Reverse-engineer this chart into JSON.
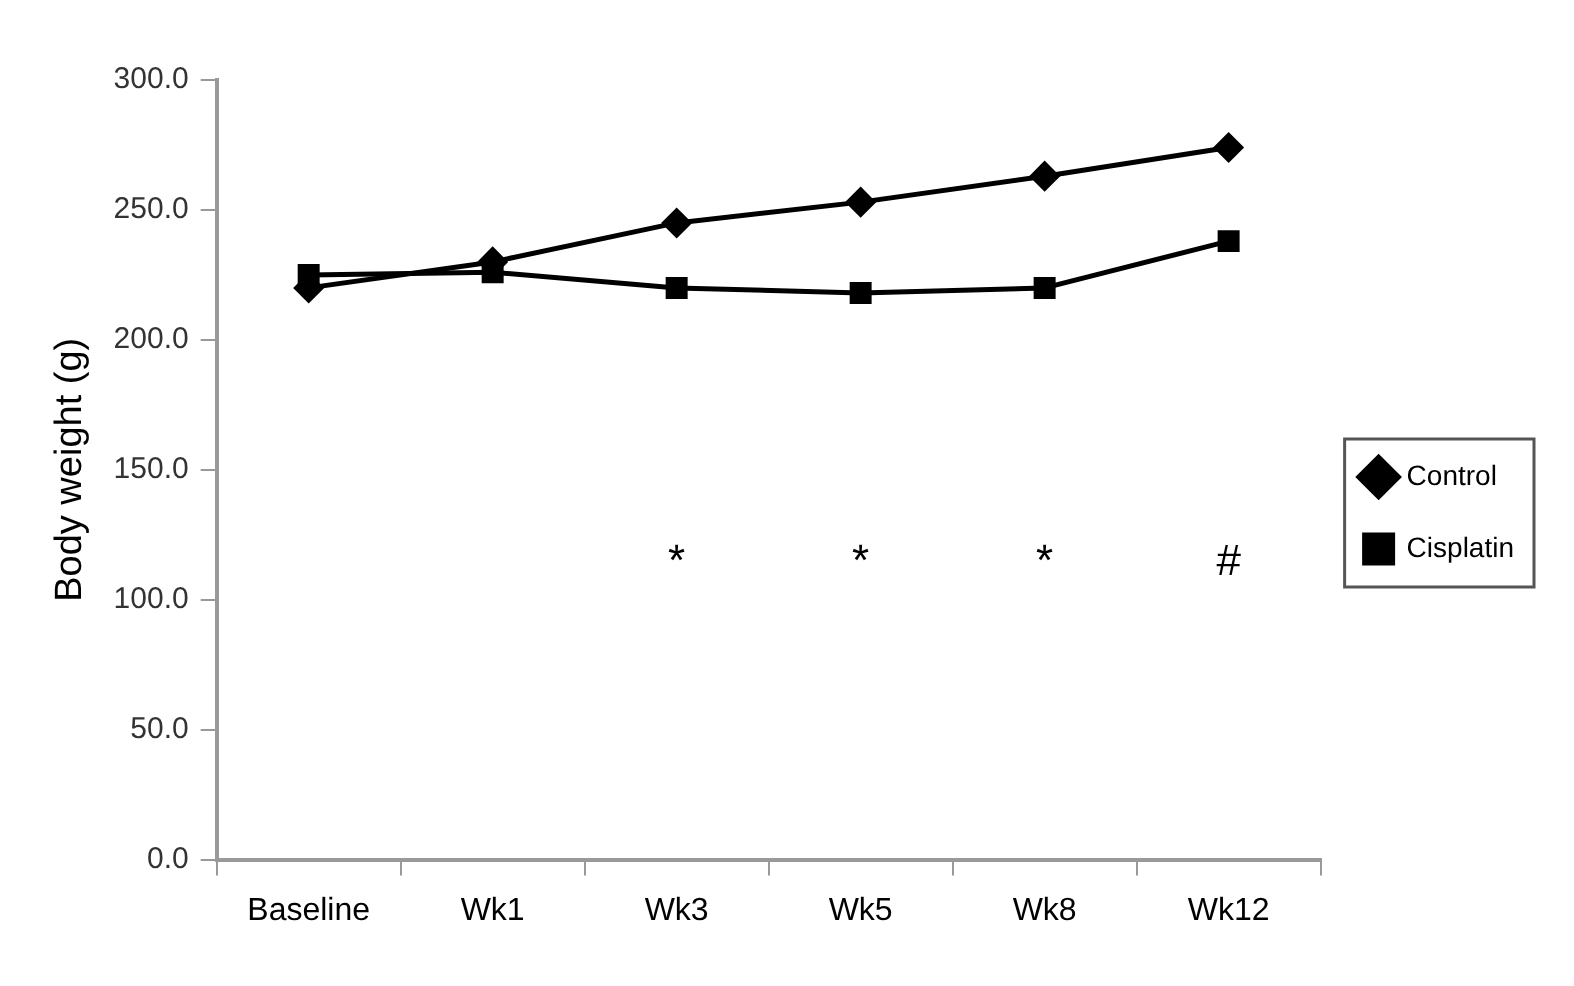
{
  "chart_data": {
    "type": "line",
    "ylabel": "Body weight (g)",
    "categories": [
      "Baseline",
      "Wk1",
      "Wk3",
      "Wk5",
      "Wk8",
      "Wk12"
    ],
    "series": [
      {
        "name": "Control",
        "color": "#000000",
        "marker": "diamond",
        "values": [
          220,
          230,
          245,
          253,
          263,
          274
        ]
      },
      {
        "name": "Cisplatin",
        "color": "#000000",
        "marker": "square",
        "values": [
          225,
          226,
          220,
          218,
          220,
          238
        ]
      }
    ],
    "ylim": [
      0,
      300
    ],
    "yticks": [
      {
        "value": 0,
        "label": "0.0"
      },
      {
        "value": 50,
        "label": "50.0"
      },
      {
        "value": 100,
        "label": "100.0"
      },
      {
        "value": 150,
        "label": "150.0"
      },
      {
        "value": 200,
        "label": "200.0"
      },
      {
        "value": 250,
        "label": "250.0"
      },
      {
        "value": 300,
        "label": "300.0"
      }
    ],
    "annotations": [
      "*",
      "*",
      "*",
      "#"
    ],
    "grid": false,
    "legend": "right",
    "line_style": "solid"
  }
}
